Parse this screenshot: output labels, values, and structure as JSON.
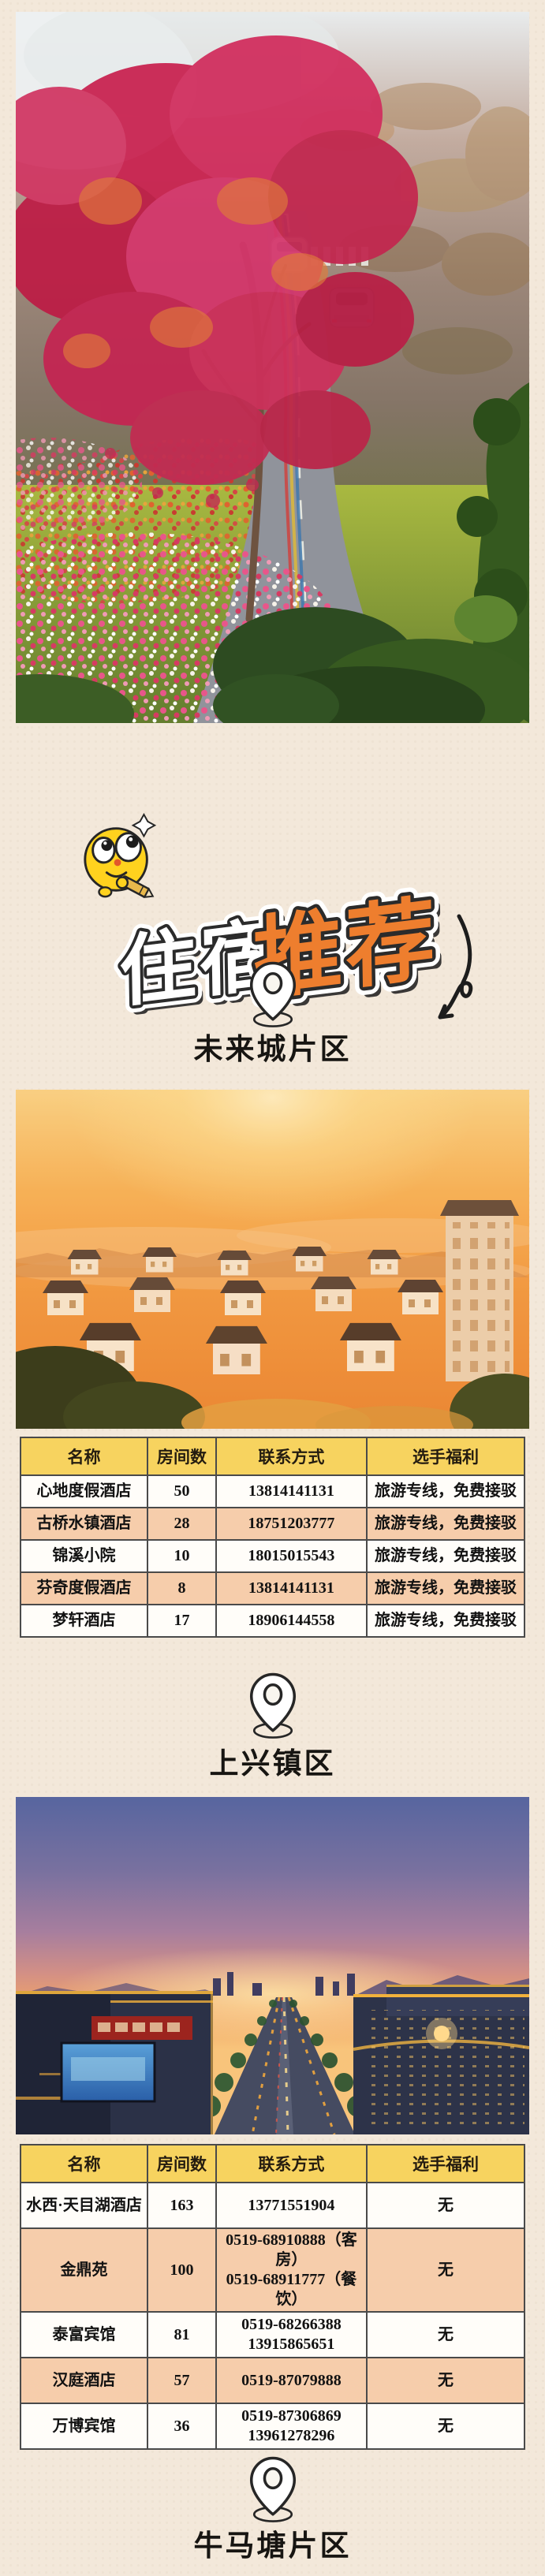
{
  "colors": {
    "page_background": "#f3e8da",
    "table_header_yellow": "#f7d35f",
    "table_row_peach": "#f6cdab",
    "title_orange": "#ee7e2e",
    "outline_ink": "#262626"
  },
  "title": {
    "word1": "住宿",
    "word2": "推荐"
  },
  "sections": [
    {
      "label": "未来城片区"
    },
    {
      "label": "上兴镇区"
    },
    {
      "label": "牛马塘片区"
    }
  ],
  "tables": [
    {
      "headers": [
        "名称",
        "房间数",
        "联系方式",
        "选手福利"
      ],
      "rows": [
        [
          "心地度假酒店",
          "50",
          "13814141131",
          "旅游专线，免费接驳"
        ],
        [
          "古桥水镇酒店",
          "28",
          "18751203777",
          "旅游专线，免费接驳"
        ],
        [
          "锦溪小院",
          "10",
          "18015015543",
          "旅游专线，免费接驳"
        ],
        [
          "芬奇度假酒店",
          "8",
          "13814141131",
          "旅游专线，免费接驳"
        ],
        [
          "梦轩酒店",
          "17",
          "18906144558",
          "旅游专线，免费接驳"
        ]
      ]
    },
    {
      "headers": [
        "名称",
        "房间数",
        "联系方式",
        "选手福利"
      ],
      "rows": [
        [
          "水西·天目湖酒店",
          "163",
          "13771551904",
          "无"
        ],
        [
          "金鼎苑",
          "100",
          "0519-68910888（客房）\n0519-68911777（餐饮）",
          "无"
        ],
        [
          "泰富宾馆",
          "81",
          "0519-68266388\n13915865651",
          "无"
        ],
        [
          "汉庭酒店",
          "57",
          "0519-87079888",
          "无"
        ],
        [
          "万博宾馆",
          "36",
          "0519-87306869\n13961278296",
          "无"
        ]
      ]
    }
  ]
}
